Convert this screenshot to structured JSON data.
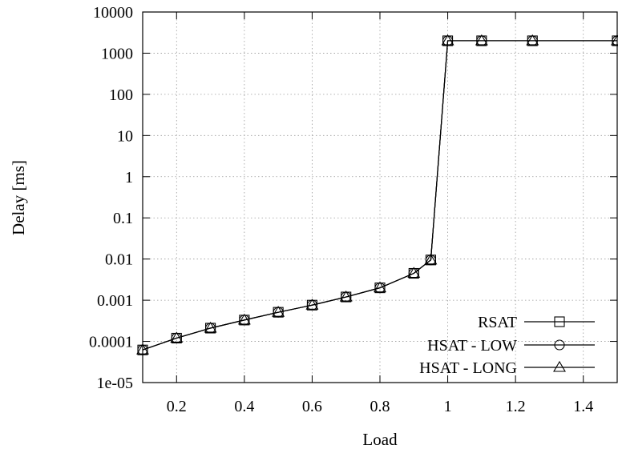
{
  "chart_data": {
    "type": "line",
    "title": "",
    "xlabel": "Load",
    "ylabel": "Delay [ms]",
    "xlim": [
      0.1,
      1.5
    ],
    "ylim": [
      1e-05,
      10000
    ],
    "yscale": "log",
    "grid": true,
    "legend_position": "bottom-right",
    "x_ticks": [
      "0.2",
      "0.4",
      "0.6",
      "0.8",
      "1",
      "1.2",
      "1.4"
    ],
    "y_ticks": [
      "1e-05",
      "0.0001",
      "0.001",
      "0.01",
      "0.1",
      "1",
      "10",
      "100",
      "1000",
      "10000"
    ],
    "x": [
      0.1,
      0.2,
      0.3,
      0.4,
      0.5,
      0.6,
      0.7,
      0.8,
      0.9,
      0.95,
      1.0,
      1.1,
      1.25,
      1.5
    ],
    "series": [
      {
        "name": "RSAT",
        "marker": "square",
        "values": [
          6.2e-05,
          0.00012,
          0.00021,
          0.00033,
          0.00051,
          0.00076,
          0.0012,
          0.002,
          0.0045,
          0.0095,
          2000,
          2000,
          2000,
          2000
        ]
      },
      {
        "name": "HSAT - LOW",
        "marker": "circle",
        "values": [
          6.2e-05,
          0.00012,
          0.00021,
          0.00033,
          0.00051,
          0.00076,
          0.0012,
          0.002,
          0.0045,
          0.0095,
          2000,
          2000,
          2000,
          2000
        ]
      },
      {
        "name": "HSAT - LONG",
        "marker": "triangle",
        "values": [
          6.2e-05,
          0.00012,
          0.00021,
          0.00033,
          0.00051,
          0.00076,
          0.0012,
          0.002,
          0.0045,
          0.0095,
          2000,
          2000,
          2000,
          2000
        ]
      }
    ]
  }
}
